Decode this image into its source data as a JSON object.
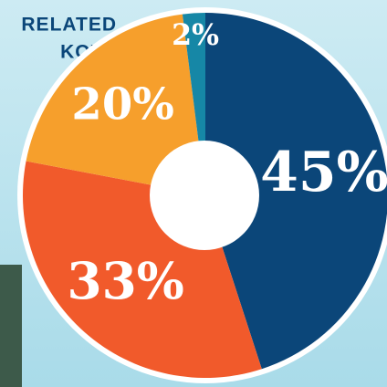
{
  "chart_data": {
    "type": "pie",
    "values": [
      45,
      33,
      20,
      2
    ],
    "value_labels": [
      "45%",
      "33%",
      "20%",
      "2%"
    ],
    "colors": [
      "#0b4679",
      "#f15a2b",
      "#f69f2c",
      "#1687a6"
    ],
    "annotations": [
      "RELATED",
      "KOTA"
    ]
  }
}
